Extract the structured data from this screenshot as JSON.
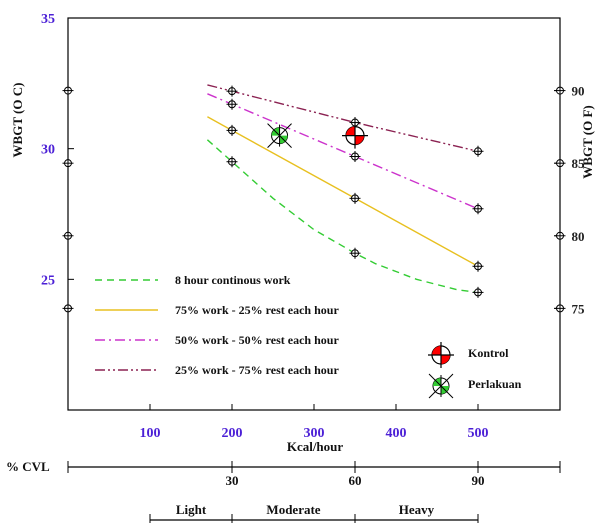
{
  "chart_data": {
    "type": "line",
    "xlabel": "Kcal/hour",
    "ylabel_left": "WBGT (O C)",
    "ylabel_right": "WBGT (O F)",
    "xlim": [
      0,
      600
    ],
    "ylim": [
      20,
      35
    ],
    "x_ticks": [
      100,
      200,
      300,
      400,
      500
    ],
    "y_ticks_left": [
      25,
      30,
      35
    ],
    "y_ticks_right": [
      75,
      80,
      85,
      90
    ],
    "series": [
      {
        "name": "8 hour continous work",
        "style": "dashed",
        "color": "#33cc33",
        "x": [
          200,
          350,
          500
        ],
        "y": [
          29.5,
          26.0,
          24.5
        ],
        "curve_x": [
          200,
          225,
          250,
          275,
          300,
          325,
          350,
          375,
          400,
          425,
          450,
          475,
          500
        ],
        "curve_y": [
          29.5,
          28.8,
          28.1,
          27.5,
          26.9,
          26.45,
          26.0,
          25.6,
          25.3,
          25.0,
          24.8,
          24.6,
          24.5
        ]
      },
      {
        "name": "75% work  - 25% rest each hour",
        "style": "solid",
        "color": "#e8c020",
        "x": [
          200,
          350,
          500
        ],
        "y": [
          30.7,
          28.1,
          25.5
        ]
      },
      {
        "name": "50% work  - 50% rest each hour",
        "style": "dashdot",
        "color": "#cc33cc",
        "x": [
          200,
          350,
          500
        ],
        "y": [
          31.7,
          29.7,
          27.7
        ]
      },
      {
        "name": "25% work  - 75% rest each hour",
        "style": "dashdotdot",
        "color": "#8b2252",
        "x": [
          200,
          350,
          500
        ],
        "y": [
          32.2,
          31.0,
          29.9
        ]
      }
    ],
    "points": [
      {
        "name": "Kontrol",
        "x": 350,
        "y": 30.5,
        "color": "#ff0000"
      },
      {
        "name": "Perlakuan",
        "x": 258,
        "y": 30.5,
        "color": "#33cc33"
      }
    ],
    "legend_position": "bottom-left",
    "markers_legend_position": "bottom-right",
    "grid": false
  },
  "cvl": {
    "label": "% CVL",
    "ticks": [
      {
        "kcal": 200,
        "label": "30"
      },
      {
        "kcal": 350,
        "label": "60"
      },
      {
        "kcal": 500,
        "label": "90"
      }
    ]
  },
  "workload": [
    {
      "label": "Light",
      "from": 100,
      "to": 200
    },
    {
      "label": "Moderate",
      "from": 200,
      "to": 350
    },
    {
      "label": "Heavy",
      "from": 350,
      "to": 500
    }
  ]
}
